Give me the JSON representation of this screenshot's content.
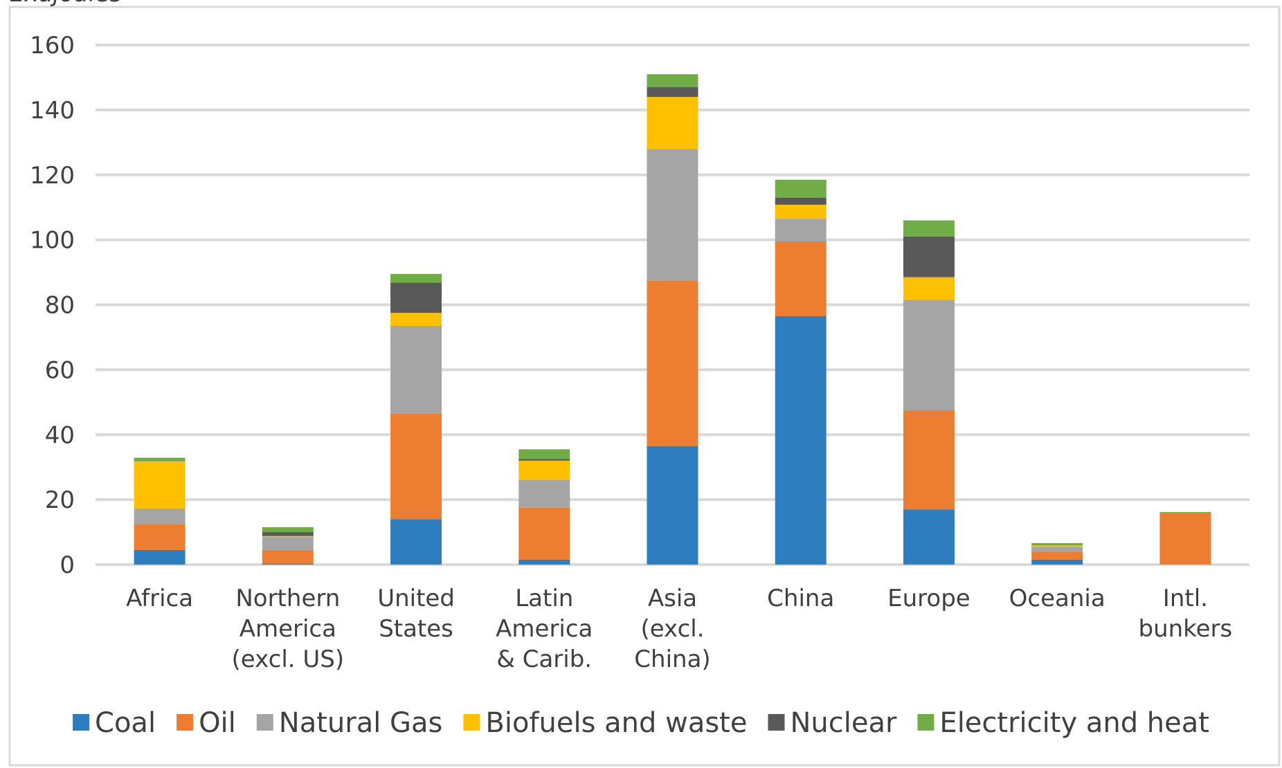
{
  "chart_data": {
    "type": "bar",
    "stacked": true,
    "unit_label": "Exajoules",
    "categories": [
      [
        "Africa"
      ],
      [
        "Northern",
        "America",
        "(excl. US)"
      ],
      [
        "United",
        "States"
      ],
      [
        "Latin",
        "America",
        "& Carib."
      ],
      [
        "Asia",
        "(excl.",
        "China)"
      ],
      [
        "China"
      ],
      [
        "Europe"
      ],
      [
        "Oceania"
      ],
      [
        "Intl.",
        "bunkers"
      ]
    ],
    "series": [
      {
        "name": "Coal",
        "color": "#2E7EBF",
        "values": [
          4.5,
          0.3,
          14,
          1.5,
          36.5,
          76.5,
          17,
          1.5,
          0
        ]
      },
      {
        "name": "Oil",
        "color": "#ED7D31",
        "values": [
          8,
          4.2,
          32.5,
          16,
          51,
          23,
          30.5,
          2.5,
          16
        ]
      },
      {
        "name": "Natural Gas",
        "color": "#A5A5A5",
        "values": [
          4.8,
          4,
          27,
          8.5,
          40.5,
          7,
          34,
          1.5,
          0
        ]
      },
      {
        "name": "Biofuels and waste",
        "color": "#FFC000",
        "values": [
          14.5,
          0.3,
          4,
          6,
          16,
          4.3,
          7,
          0.4,
          0
        ]
      },
      {
        "name": "Nuclear",
        "color": "#595959",
        "values": [
          0.1,
          1.2,
          9.3,
          0.5,
          3,
          2.2,
          12.5,
          0,
          0
        ]
      },
      {
        "name": "Electricity and heat",
        "color": "#70AD47",
        "values": [
          1,
          1.5,
          2.7,
          3,
          4,
          5.5,
          5,
          0.7,
          0.2
        ]
      }
    ],
    "y_ticks": [
      "0",
      "20",
      "40",
      "60",
      "80",
      "100",
      "120",
      "140",
      "160"
    ],
    "ylim": [
      0,
      160
    ],
    "grid": true,
    "legend_position": "bottom",
    "colors": {
      "grid": "#D9D9D9",
      "text": "#404040",
      "frame": "#D9D9D9"
    }
  }
}
